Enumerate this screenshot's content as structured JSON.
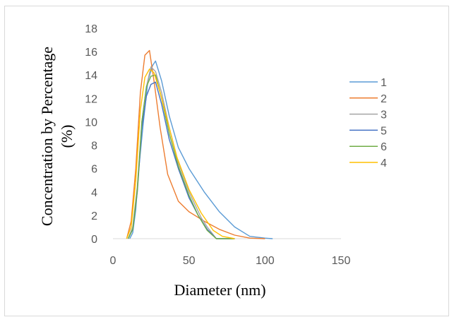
{
  "chart_data": {
    "type": "line",
    "xlabel": "Diameter (nm)",
    "ylabel_line1": "Concentration by Percentage",
    "ylabel_line2": "(%)",
    "xlim": [
      0,
      150
    ],
    "ylim": [
      0,
      18
    ],
    "x_ticks": [
      0,
      50,
      100,
      150
    ],
    "y_ticks": [
      0,
      2,
      4,
      6,
      8,
      10,
      12,
      14,
      16,
      18
    ],
    "grid": false,
    "legend_position": "right",
    "series": [
      {
        "name": "1",
        "color": "#5b9bd5",
        "points": [
          [
            11,
            0
          ],
          [
            13,
            0.5
          ],
          [
            15,
            2.5
          ],
          [
            17,
            6
          ],
          [
            20,
            10
          ],
          [
            23,
            13.5
          ],
          [
            26,
            14.8
          ],
          [
            28,
            15.2
          ],
          [
            32,
            13.5
          ],
          [
            37,
            10.5
          ],
          [
            43,
            7.8
          ],
          [
            50,
            6
          ],
          [
            60,
            4
          ],
          [
            70,
            2.3
          ],
          [
            80,
            1
          ],
          [
            90,
            0.2
          ],
          [
            100,
            0.05
          ],
          [
            105,
            0
          ]
        ]
      },
      {
        "name": "2",
        "color": "#ed7d31",
        "points": [
          [
            9,
            0
          ],
          [
            12,
            1.5
          ],
          [
            15,
            6
          ],
          [
            18,
            12.5
          ],
          [
            21,
            15.7
          ],
          [
            24,
            16.1
          ],
          [
            27,
            13.5
          ],
          [
            31,
            9.5
          ],
          [
            36,
            5.5
          ],
          [
            43,
            3.2
          ],
          [
            50,
            2.3
          ],
          [
            60,
            1.5
          ],
          [
            70,
            0.8
          ],
          [
            80,
            0.3
          ],
          [
            90,
            0.05
          ],
          [
            100,
            0
          ]
        ]
      },
      {
        "name": "3",
        "color": "#a5a5a5",
        "points": [
          [
            10,
            0
          ],
          [
            13,
            1
          ],
          [
            16,
            4.5
          ],
          [
            19,
            10
          ],
          [
            22,
            13
          ],
          [
            25,
            14.7
          ],
          [
            28,
            14.3
          ],
          [
            32,
            12.5
          ],
          [
            37,
            9.5
          ],
          [
            43,
            6.5
          ],
          [
            50,
            4
          ],
          [
            58,
            1.8
          ],
          [
            62,
            1
          ],
          [
            68,
            0
          ],
          [
            80,
            0
          ]
        ]
      },
      {
        "name": "5",
        "color": "#4472c4",
        "points": [
          [
            10,
            0
          ],
          [
            13,
            0.8
          ],
          [
            16,
            4
          ],
          [
            19,
            9.5
          ],
          [
            22,
            12.2
          ],
          [
            25,
            13.2
          ],
          [
            28,
            13.4
          ],
          [
            32,
            11.5
          ],
          [
            37,
            8.5
          ],
          [
            43,
            6
          ],
          [
            50,
            3.5
          ],
          [
            56,
            2
          ],
          [
            62,
            0.8
          ],
          [
            68,
            0
          ],
          [
            80,
            0
          ]
        ]
      },
      {
        "name": "6",
        "color": "#70ad47",
        "points": [
          [
            10,
            0
          ],
          [
            13,
            0.8
          ],
          [
            16,
            4.2
          ],
          [
            19,
            10
          ],
          [
            22,
            13
          ],
          [
            25,
            13.9
          ],
          [
            28,
            14
          ],
          [
            32,
            12
          ],
          [
            37,
            9
          ],
          [
            43,
            6.2
          ],
          [
            50,
            3.7
          ],
          [
            56,
            2
          ],
          [
            62,
            0.7
          ],
          [
            68,
            0
          ],
          [
            80,
            0
          ]
        ]
      },
      {
        "name": "4",
        "color": "#ffc000",
        "points": [
          [
            9,
            0
          ],
          [
            12,
            1
          ],
          [
            15,
            5
          ],
          [
            18,
            11
          ],
          [
            21,
            13.8
          ],
          [
            24,
            14.5
          ],
          [
            27,
            14.2
          ],
          [
            31,
            12.5
          ],
          [
            36,
            10
          ],
          [
            42,
            7
          ],
          [
            50,
            4.2
          ],
          [
            58,
            2.2
          ],
          [
            66,
            0.7
          ],
          [
            72,
            0.2
          ],
          [
            80,
            0
          ]
        ]
      }
    ]
  }
}
